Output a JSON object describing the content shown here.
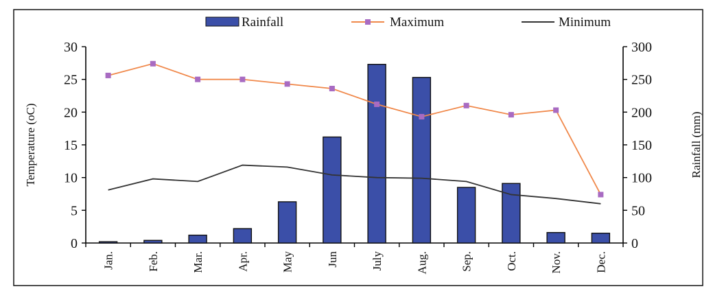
{
  "chart_data": {
    "type": "bar",
    "categories": [
      "Jan.",
      "Feb.",
      "Mar.",
      "Apr.",
      "May",
      "Jun",
      "July",
      "Aug.",
      "Sep.",
      "Oct.",
      "Nov.",
      "Dec."
    ],
    "series": [
      {
        "name": "Rainfall",
        "type": "bar",
        "axis": "right",
        "values": [
          2,
          4,
          12,
          22,
          63,
          162,
          273,
          253,
          85,
          91,
          16,
          15
        ],
        "color": "#3b4fa8"
      },
      {
        "name": "Maximum",
        "type": "line",
        "axis": "left",
        "values": [
          25.6,
          27.4,
          25.0,
          25.0,
          24.3,
          23.6,
          21.2,
          19.3,
          21.0,
          19.6,
          20.3,
          7.4
        ],
        "color": "#f0884a",
        "marker_color": "#a86bc2"
      },
      {
        "name": "Minimum",
        "type": "line",
        "axis": "left",
        "values": [
          8.1,
          9.8,
          9.4,
          11.9,
          11.6,
          10.4,
          10.0,
          9.9,
          9.4,
          7.4,
          6.8,
          6.0
        ],
        "color": "#333333"
      }
    ],
    "ylabel": "Temperature (oC)",
    "ylabel2": "Rainfall (mm)",
    "ylim": [
      0,
      30
    ],
    "ylim2": [
      0,
      300
    ],
    "yticks": [
      "0",
      "5",
      "10",
      "15",
      "20",
      "25",
      "30"
    ],
    "yticks2": [
      "0",
      "50",
      "100",
      "150",
      "200",
      "250",
      "300"
    ],
    "legend_position": "top",
    "grid": false
  }
}
